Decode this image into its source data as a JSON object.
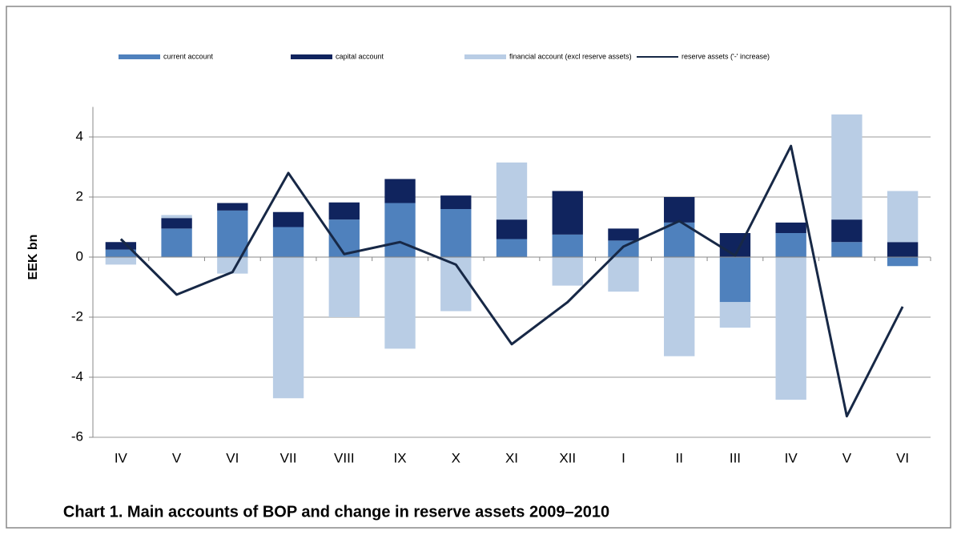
{
  "chart_data": {
    "type": "bar",
    "stacked": true,
    "title": "Chart 1. Main accounts of BOP and change in reserve assets 2009–2010",
    "y_label": "EEK bn",
    "categories": [
      "IV",
      "V",
      "VI",
      "VII",
      "VIII",
      "IX",
      "X",
      "XI",
      "XII",
      "I",
      "II",
      "III",
      "IV",
      "V",
      "VI"
    ],
    "series": [
      {
        "name": "current account",
        "color": "#4f81bd",
        "type": "bar",
        "values": [
          0.25,
          0.95,
          1.55,
          1.0,
          1.25,
          1.8,
          1.6,
          0.6,
          0.75,
          0.55,
          1.15,
          -1.5,
          0.8,
          0.5,
          -0.3
        ]
      },
      {
        "name": "capital account",
        "color": "#10245e",
        "type": "bar",
        "values": [
          0.25,
          0.35,
          0.25,
          0.5,
          0.57,
          0.8,
          0.45,
          0.65,
          1.45,
          0.4,
          0.85,
          0.8,
          0.35,
          0.75,
          0.5
        ]
      },
      {
        "name": "financial account (excl reserve assets)",
        "color": "#b9cde5",
        "type": "bar",
        "values": [
          -0.25,
          0.1,
          -0.55,
          -4.7,
          -2.0,
          -3.05,
          -1.8,
          1.9,
          -0.95,
          -1.15,
          -3.3,
          -0.85,
          -4.75,
          3.5,
          1.7
        ]
      },
      {
        "name": "reserve assets ('-' increase)",
        "color": "#172846",
        "type": "line",
        "values": [
          0.6,
          -1.25,
          -0.5,
          2.8,
          0.1,
          0.5,
          -0.25,
          -2.9,
          -1.5,
          0.35,
          1.2,
          0.05,
          3.7,
          -5.3,
          -1.65
        ]
      }
    ],
    "ylim": [
      -6,
      5
    ],
    "yticks": [
      -6,
      -4,
      -2,
      0,
      2,
      4
    ],
    "grid": true
  }
}
